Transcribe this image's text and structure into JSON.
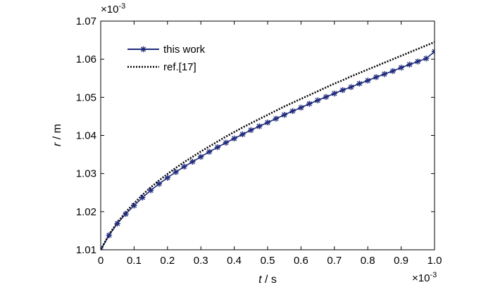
{
  "chart_data": {
    "type": "line",
    "title": "",
    "xlabel": {
      "var": "t",
      "unit": " / s"
    },
    "ylabel": {
      "var": "r",
      "unit": " / m"
    },
    "x_multiplier": {
      "base": "×10",
      "exp": "-3"
    },
    "y_multiplier": {
      "base": "×10",
      "exp": "-3"
    },
    "xlim": [
      0,
      1.0
    ],
    "ylim": [
      1.01,
      1.07
    ],
    "x_ticks": [
      "0",
      "0.1",
      "0.2",
      "0.3",
      "0.4",
      "0.5",
      "0.6",
      "0.7",
      "0.8",
      "0.9",
      "1.0"
    ],
    "y_ticks": [
      "1.01",
      "1.02",
      "1.03",
      "1.04",
      "1.05",
      "1.06",
      "1.07"
    ],
    "grid": false,
    "legend_position": "top-left",
    "series": [
      {
        "name": "this work",
        "color": "#1f2a7a",
        "style": "solid-star-markers",
        "x": [
          0,
          0.025,
          0.05,
          0.075,
          0.1,
          0.125,
          0.15,
          0.175,
          0.2,
          0.225,
          0.25,
          0.275,
          0.3,
          0.325,
          0.35,
          0.375,
          0.4,
          0.425,
          0.45,
          0.475,
          0.5,
          0.525,
          0.55,
          0.575,
          0.6,
          0.625,
          0.65,
          0.675,
          0.7,
          0.725,
          0.75,
          0.775,
          0.8,
          0.825,
          0.85,
          0.875,
          0.9,
          0.925,
          0.95,
          0.975,
          1.0
        ],
        "values": [
          1.01,
          1.0138,
          1.0169,
          1.0194,
          1.0216,
          1.0237,
          1.0256,
          1.0273,
          1.0289,
          1.0304,
          1.0318,
          1.0331,
          1.0344,
          1.0357,
          1.0369,
          1.0381,
          1.0392,
          1.0403,
          1.0414,
          1.0424,
          1.0434,
          1.0444,
          1.0454,
          1.0464,
          1.0473,
          1.0483,
          1.0492,
          1.0501,
          1.051,
          1.0519,
          1.0527,
          1.0536,
          1.0544,
          1.0553,
          1.0561,
          1.0569,
          1.0578,
          1.0586,
          1.0594,
          1.0602,
          1.062
        ]
      },
      {
        "name": "ref.[17]",
        "color": "#000000",
        "style": "dotted",
        "x": [
          0,
          0.025,
          0.05,
          0.075,
          0.1,
          0.125,
          0.15,
          0.175,
          0.2,
          0.225,
          0.25,
          0.275,
          0.3,
          0.325,
          0.35,
          0.375,
          0.4,
          0.425,
          0.45,
          0.475,
          0.5,
          0.525,
          0.55,
          0.575,
          0.6,
          0.625,
          0.65,
          0.675,
          0.7,
          0.725,
          0.75,
          0.775,
          0.8,
          0.825,
          0.85,
          0.875,
          0.9,
          0.925,
          0.95,
          0.975,
          1.0
        ],
        "values": [
          1.01,
          1.014,
          1.0172,
          1.0199,
          1.0222,
          1.0244,
          1.0264,
          1.0282,
          1.0299,
          1.0315,
          1.033,
          1.0344,
          1.0358,
          1.0371,
          1.0384,
          1.0397,
          1.0409,
          1.0421,
          1.0432,
          1.0443,
          1.0454,
          1.0465,
          1.0476,
          1.0486,
          1.0496,
          1.0506,
          1.0516,
          1.0526,
          1.0536,
          1.0545,
          1.0555,
          1.0564,
          1.0573,
          1.0582,
          1.0591,
          1.06,
          1.0609,
          1.0618,
          1.0627,
          1.0636,
          1.0645
        ]
      }
    ]
  }
}
